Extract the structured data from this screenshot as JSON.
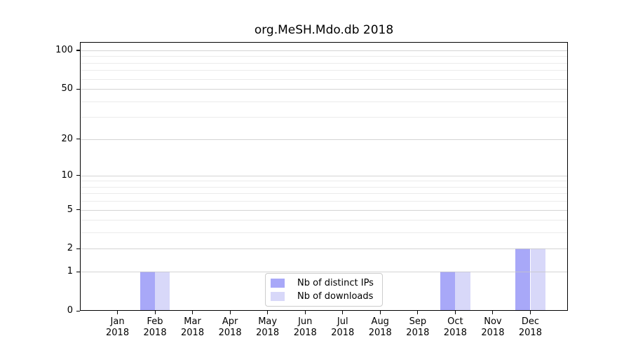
{
  "title": "org.MeSH.Mdo.db 2018",
  "chart_data": {
    "type": "bar",
    "scale": "log1p",
    "grid": true,
    "legend_position": "lower center (inside plot)",
    "categories": [
      "Jan",
      "Feb",
      "Mar",
      "Apr",
      "May",
      "Jun",
      "Jul",
      "Aug",
      "Sep",
      "Oct",
      "Nov",
      "Dec"
    ],
    "year": "2018",
    "series": [
      {
        "name": "Nb of distinct IPs",
        "color": "rgba(134,134,245,0.72)",
        "values": [
          0,
          1,
          0,
          0,
          0,
          0,
          0,
          0,
          0,
          1,
          0,
          2
        ]
      },
      {
        "name": "Nb of downloads",
        "color": "rgba(188,188,244,0.58)",
        "values": [
          0,
          1,
          0,
          0,
          0,
          0,
          0,
          0,
          0,
          1,
          0,
          2
        ]
      }
    ],
    "y_ticks": [
      0,
      1,
      2,
      5,
      10,
      20,
      50,
      100
    ],
    "y_minor_ticks": [
      3,
      4,
      6,
      7,
      8,
      9,
      30,
      40,
      60,
      70,
      80,
      90
    ],
    "ylim": [
      0,
      116
    ],
    "xlabel": "",
    "ylabel": ""
  },
  "colors": {
    "grid_major": "#c6c6c6",
    "grid_minor": "#ebebeb",
    "spine": "#000000",
    "background": "#ffffff"
  }
}
